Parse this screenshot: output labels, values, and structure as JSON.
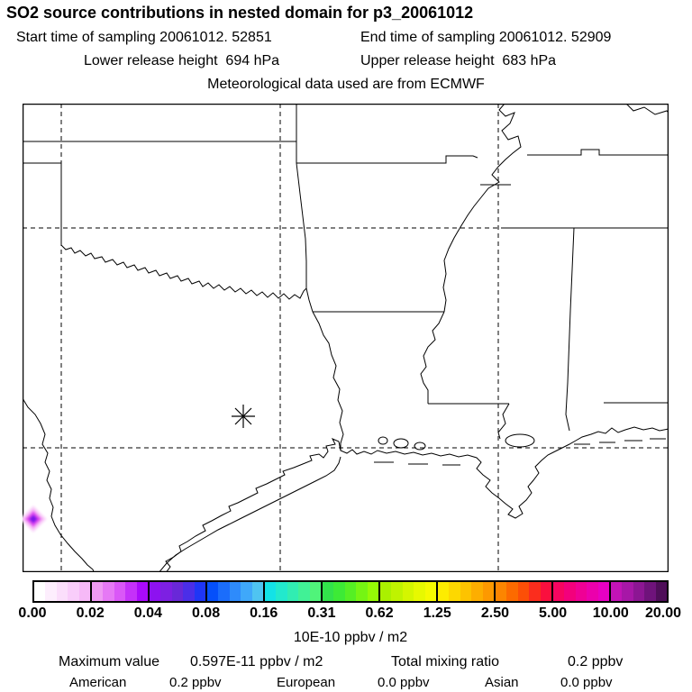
{
  "header": {
    "title": "SO2 source contributions in nested domain for p3_20061012",
    "sampling_start": "Start time of sampling 20061012. 52851",
    "sampling_end": "End time of sampling 20061012. 52909",
    "lower_release": "Lower release height  694 hPa",
    "upper_release": "Upper release height  683 hPa",
    "met_source": "Meteorological data used are from ECMWF"
  },
  "colorbar": {
    "labels": [
      "0.00",
      "0.02",
      "0.04",
      "0.08",
      "0.16",
      "0.31",
      "0.62",
      "1.25",
      "2.50",
      "5.00",
      "10.00",
      "20.00"
    ],
    "segments": [
      [
        "#ffffff",
        "#fdeefd",
        "#fbdefb",
        "#f9cdfa",
        "#f6b9f7"
      ],
      [
        "#ef9af3",
        "#e679f5",
        "#da57f7",
        "#c531f9",
        "#aa0afb"
      ],
      [
        "#8d12f0",
        "#7d20e2",
        "#6928d8",
        "#4b2ee8",
        "#1f36f6"
      ],
      [
        "#0550fa",
        "#1b6dfb",
        "#2e8bfb",
        "#3fa8fa",
        "#4fc4f1"
      ],
      [
        "#13e2e6",
        "#22e9cd",
        "#31edb2",
        "#41f196",
        "#50f47a"
      ],
      [
        "#32e24b",
        "#3dea36",
        "#55ef24",
        "#75f513",
        "#95fa06"
      ],
      [
        "#aaf000",
        "#bff300",
        "#d4f600",
        "#e7f900",
        "#f6fa00"
      ],
      [
        "#fdec00",
        "#fdd800",
        "#fdc300",
        "#fdae00",
        "#fd9900"
      ],
      [
        "#fc8500",
        "#fc6a00",
        "#fc4f07",
        "#fb2d1d",
        "#fa0f3e"
      ],
      [
        "#f70560",
        "#f3007c",
        "#ef0095",
        "#eb00ac",
        "#e700c3"
      ],
      [
        "#c213b6",
        "#a717a7",
        "#8c1693",
        "#6f137b",
        "#4f0e59"
      ]
    ],
    "units": "10E-10 ppbv / m2"
  },
  "footer": {
    "maximum_label": "Maximum value",
    "maximum_value": "0.597E-11 ppbv / m2",
    "total_label": "Total mixing ratio",
    "total_value": "0.2 ppbv",
    "regions": [
      {
        "name": "American",
        "value": "0.2 ppbv"
      },
      {
        "name": "European",
        "value": "0.0 ppbv"
      },
      {
        "name": "Asian",
        "value": "0.0 ppbv"
      }
    ]
  },
  "markers": {
    "release_point": "release-point-asterisk",
    "plume_cell_colors": [
      "#fbdcfb",
      "#f6b0f6",
      "#e148f0",
      "#8016e8"
    ]
  },
  "chart_data": {
    "type": "heatmap",
    "title": "SO2 source contributions in nested domain for p3_20061012",
    "subtitle": [
      "Start time of sampling 20061012. 52851",
      "End time of sampling 20061012. 52909",
      "Lower release height 694 hPa",
      "Upper release height 683 hPa",
      "Meteorological data used are from ECMWF"
    ],
    "colorbar_ticks": [
      0.0,
      0.02,
      0.04,
      0.08,
      0.16,
      0.31,
      0.62,
      1.25,
      2.5,
      5.0,
      10.0,
      20.0
    ],
    "colorbar_units": "10E-10 ppbv / m2",
    "max_value": "0.597E-11 ppbv / m2",
    "total_mixing_ratio_ppbv": 0.2,
    "region_mixing_ratios_ppbv": {
      "American": 0.2,
      "European": 0.0,
      "Asian": 0.0
    },
    "release_point_frac": {
      "x": 0.342,
      "y": 0.669
    },
    "plume_cells": [
      {
        "x_frac": 0.017,
        "y_frac": 0.886,
        "approx_bin": "0.02-0.08"
      }
    ],
    "legend_position": "bottom",
    "grid": "dashed lat/lon lines"
  }
}
